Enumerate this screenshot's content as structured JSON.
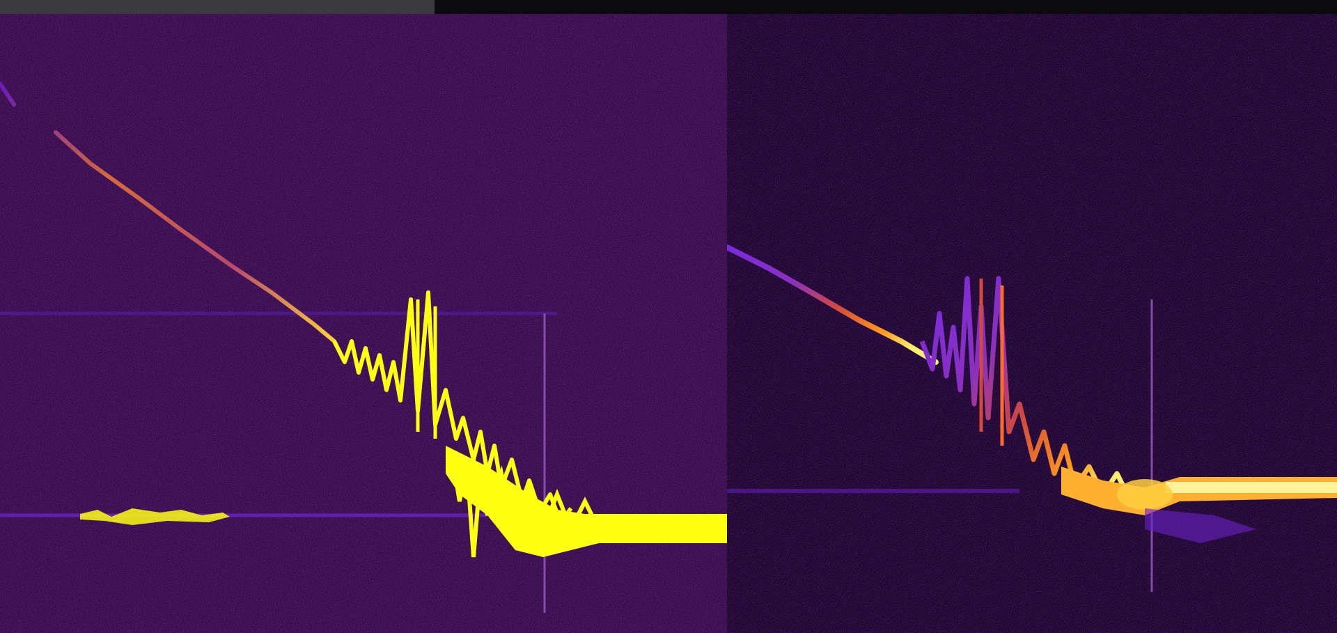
{
  "colors": {
    "background": "#0b0b0d",
    "toolbar": "#3a3a3c",
    "left_panel_bg": "#2a0a3a",
    "right_panel_bg": "#14051e",
    "low_intensity": "#5a1aa8",
    "mid_intensity": "#d24a3c",
    "high_intensity": "#ffff12"
  }
}
